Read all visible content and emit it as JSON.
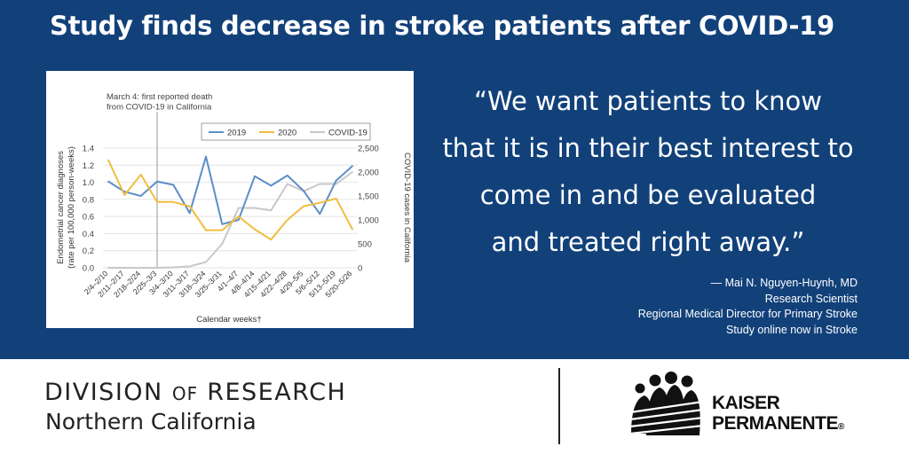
{
  "headline": "Study finds decrease in stroke patients after COVID-19",
  "quote_lines": [
    "“We want patients to know",
    "that it is in their best interest to",
    "come in and be evaluated",
    "and treated right away.”"
  ],
  "attribution_lines": [
    "— Mai N. Nguyen-Huynh, MD",
    "Research Scientist",
    "Regional Medical Director for Primary Stroke",
    "Study online now in Stroke"
  ],
  "footer": {
    "division_pre": "DIVISION",
    "division_of": "OF",
    "division_post": "RESEARCH",
    "division_subtitle": "Northern California",
    "brand_line1": "KAISER",
    "brand_line2": "PERMANENTE",
    "brand_reg": "®"
  },
  "colors": {
    "banner": "#12417a",
    "series_2019": "#5b8ec9",
    "series_2020": "#f0bd3f",
    "series_covid": "#c8c8c8"
  },
  "chart_data": {
    "type": "line",
    "annotation_lines": [
      "March 4: first reported death",
      "from COVID-19 in California"
    ],
    "annotation_x_category": "2/25–3/3",
    "xlabel": "Calendar weeks†",
    "ylabel": "Endometrial cancer diagnoses\n(rate per 100,000 person-weeks)",
    "y2label": "COVID-19 cases in California",
    "ylim": [
      0,
      1.4
    ],
    "y2lim": [
      0,
      2500
    ],
    "yticks": [
      "0.0",
      "0.2",
      "0.4",
      "0.6",
      "0.8",
      "1.0",
      "1.2",
      "1.4"
    ],
    "y2ticks": [
      "0",
      "500",
      "1,000",
      "1,500",
      "2,000",
      "2,500"
    ],
    "grid": true,
    "legend_position": "top-right",
    "categories": [
      "2/4–2/10",
      "2/11–2/17",
      "2/18–2/24",
      "2/25–3/3",
      "3/4–3/10",
      "3/11–3/17",
      "3/18–3/24",
      "3/25–3/31",
      "4/1–4/7",
      "4/8–4/14",
      "4/15–4/21",
      "4/22–4/28",
      "4/29–5/5",
      "5/6–5/12",
      "5/13–5/19",
      "5/20–5/26"
    ],
    "series": [
      {
        "name": "2019",
        "axis": "left",
        "values": [
          1.01,
          0.89,
          0.84,
          1.01,
          0.97,
          0.64,
          1.3,
          0.51,
          0.56,
          1.07,
          0.96,
          1.08,
          0.9,
          0.63,
          1.02,
          1.19
        ]
      },
      {
        "name": "2020",
        "axis": "left",
        "values": [
          1.26,
          0.85,
          1.09,
          0.77,
          0.77,
          0.72,
          0.44,
          0.44,
          0.6,
          0.45,
          0.33,
          0.56,
          0.72,
          0.76,
          0.81,
          0.45
        ]
      },
      {
        "name": "COVID-19",
        "axis": "right",
        "values": [
          0,
          0,
          0,
          0,
          10,
          30,
          120,
          500,
          1250,
          1250,
          1200,
          1750,
          1600,
          1750,
          1750,
          2000
        ]
      }
    ]
  }
}
